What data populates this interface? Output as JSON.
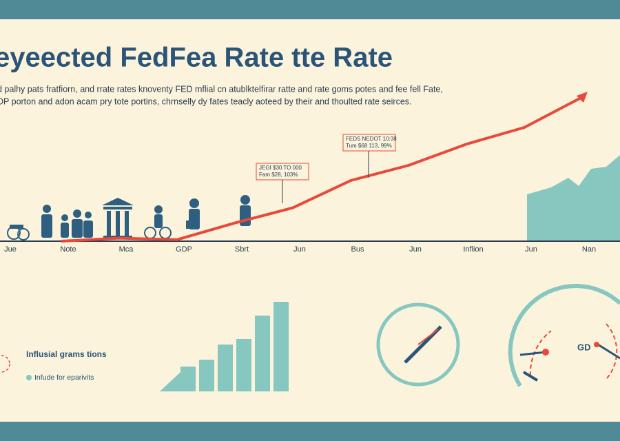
{
  "chart_data": [
    {
      "type": "line",
      "title": "eyeected FedFea Rate tte Rate",
      "subtitle": [
        "d palhy pats fratfiorn, and rrate rates knoventy FED mflial cn atublktelfirar ratte and rate goms potes and fee fell Fate,",
        "DP porton and adon acam pry tote portins, chrnselly dy fates teacly aoteed by their and thoulted rate seirces."
      ],
      "categories": [
        "Jue",
        "Note",
        "Mca",
        "GDP",
        "Sbrt",
        "Jun",
        "Bus",
        "Jun",
        "Inflion",
        "Jun",
        "Nan"
      ],
      "series": [
        {
          "color": "#e8493a",
          "values": [
            null,
            0,
            2,
            1,
            12,
            22,
            40,
            50,
            64,
            75,
            95
          ]
        }
      ],
      "ylim": [
        0,
        100
      ],
      "annotations": [
        [
          "JEGI $30 TO 000",
          "Fam $28, 103%"
        ],
        [
          "FEDS NEDOT 10:38",
          "Tum $68 113, 99%"
        ]
      ]
    },
    {
      "type": "bar",
      "title": "Influsial grams tions",
      "series": [
        {
          "name": "Infude for eparivits",
          "color": "#86c7c0",
          "values": [
            36,
            46,
            68,
            76,
            110,
            130
          ]
        }
      ],
      "ylim": [
        0,
        140
      ]
    }
  ],
  "gauge_label": "GD"
}
